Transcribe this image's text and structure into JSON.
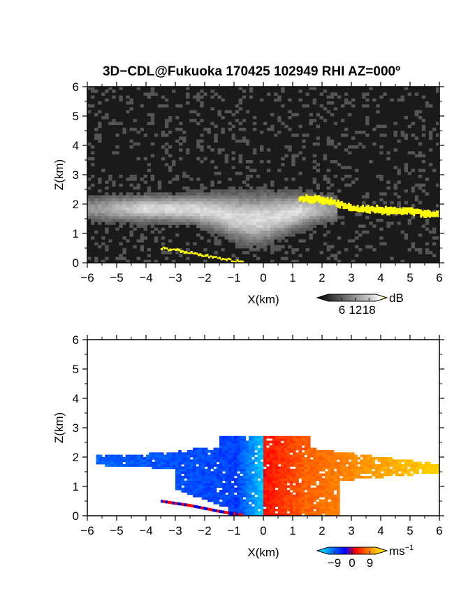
{
  "title": "3D−CDL@Fukuoka 170425 102949 RHI AZ=000º",
  "chart_data": [
    {
      "type": "heatmap",
      "name": "power",
      "xlabel": "X(km)",
      "ylabel": "Z(km)",
      "xlim": [
        -6,
        6
      ],
      "ylim": [
        0,
        6
      ],
      "x_ticks": [
        "−6",
        "−5",
        "−4",
        "−3",
        "−2",
        "−1",
        "0",
        "1",
        "2",
        "3",
        "4",
        "5",
        "6"
      ],
      "y_ticks": [
        "0",
        "1",
        "2",
        "3",
        "4",
        "5",
        "6"
      ],
      "colorbar": {
        "unit": "dB",
        "ticks": [
          "6",
          "12",
          "18"
        ],
        "tick_values": [
          6,
          12,
          18
        ],
        "range": [
          0,
          21
        ],
        "colors": [
          "#000000",
          "#ffffff",
          "#ffff00"
        ]
      },
      "layers": {
        "cloud": {
          "x_range": [
            -6,
            2.5
          ],
          "z_center": 1.85,
          "z_halfwidth": 0.45,
          "max_db": 14
        },
        "strong_band": {
          "color": "#ffff00",
          "points": [
            [
              1.2,
              2.2
            ],
            [
              2.0,
              2.15
            ],
            [
              2.6,
              2.0
            ],
            [
              3.0,
              1.85
            ],
            [
              4.0,
              1.8
            ],
            [
              5.0,
              1.75
            ],
            [
              6.0,
              1.65
            ]
          ]
        },
        "ground_echo": {
          "color": "#ffff00",
          "points": [
            [
              -3.5,
              0.5
            ],
            [
              -2.5,
              0.35
            ],
            [
              -1.5,
              0.15
            ],
            [
              -0.7,
              0.02
            ]
          ]
        }
      }
    },
    {
      "type": "heatmap",
      "name": "radial_velocity",
      "xlabel": "X(km)",
      "ylabel": "Z(km)",
      "xlim": [
        -6,
        6
      ],
      "ylim": [
        0,
        6
      ],
      "x_ticks": [
        "−6",
        "−5",
        "−4",
        "−3",
        "−2",
        "−1",
        "0",
        "1",
        "2",
        "3",
        "4",
        "5",
        "6"
      ],
      "y_ticks": [
        "0",
        "1",
        "2",
        "3",
        "4",
        "5",
        "6"
      ],
      "colorbar": {
        "unit": "ms",
        "unit_exponent": "−1",
        "ticks": [
          "−9",
          "0",
          "9"
        ],
        "tick_values": [
          -9,
          0,
          9
        ],
        "range": [
          -12,
          12
        ],
        "colors": [
          "#00ffff",
          "#0000ff",
          "#ff0000",
          "#ffaa00",
          "#ffff00"
        ]
      },
      "regions": [
        {
          "label": "approaching",
          "x_range": [
            -5.6,
            -0.1
          ],
          "z_range": [
            0.4,
            2.6
          ],
          "velocity_ms": -4
        },
        {
          "label": "core_negative",
          "x_range": [
            -1.0,
            0.0
          ],
          "z_range": [
            0.0,
            2.8
          ],
          "velocity_ms": -10
        },
        {
          "label": "core_positive",
          "x_range": [
            0.0,
            1.5
          ],
          "z_range": [
            0.0,
            2.8
          ],
          "velocity_ms": 3
        },
        {
          "label": "receding",
          "x_range": [
            1.5,
            6.0
          ],
          "z_range": [
            0.3,
            2.4
          ],
          "velocity_ms": 9
        }
      ]
    }
  ]
}
